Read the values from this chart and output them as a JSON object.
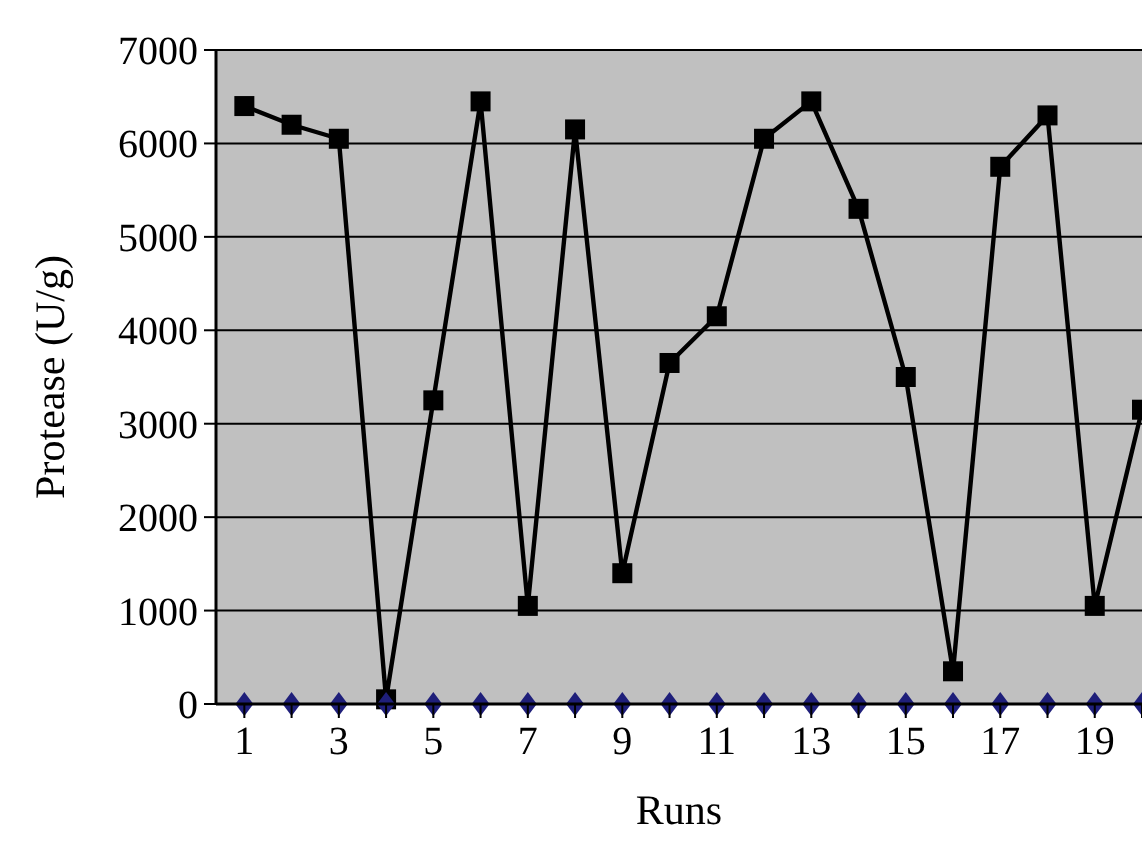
{
  "chart_data": {
    "type": "line",
    "xlabel": "Runs",
    "ylabel": "Protease (U/g)",
    "x": [
      1,
      2,
      3,
      4,
      5,
      6,
      7,
      8,
      9,
      10,
      11,
      12,
      13,
      14,
      15,
      16,
      17,
      18,
      19,
      20
    ],
    "xlim": [
      0.4,
      20
    ],
    "xticks": [
      1,
      {
        "value": 2,
        "label": null
      },
      3,
      {
        "value": 4,
        "label": null
      },
      5,
      {
        "value": 6,
        "label": null
      },
      7,
      {
        "value": 8,
        "label": null
      },
      9,
      {
        "value": 10,
        "label": null
      },
      11,
      {
        "value": 12,
        "label": null
      },
      13,
      {
        "value": 14,
        "label": null
      },
      15,
      {
        "value": 16,
        "label": null
      },
      17,
      {
        "value": 18,
        "label": null
      },
      19,
      {
        "value": 20,
        "label": null
      }
    ],
    "ylim": [
      0,
      7000
    ],
    "yticks": [
      0,
      1000,
      2000,
      3000,
      4000,
      5000,
      6000,
      7000
    ],
    "grid": "y",
    "series": [
      {
        "marker": "square",
        "color": "#000000",
        "values": [
          6400,
          6200,
          6050,
          50,
          3250,
          6450,
          1050,
          6150,
          1400,
          3650,
          4150,
          6050,
          6450,
          5300,
          3500,
          350,
          5750,
          6300,
          1050,
          3150
        ]
      },
      {
        "type": "scatter",
        "marker": "diamond",
        "color": "#1f1f7a",
        "values": [
          0,
          0,
          0,
          0,
          0,
          0,
          0,
          0,
          0,
          0,
          0,
          0,
          0,
          0,
          0,
          0,
          0,
          0,
          0,
          0
        ]
      }
    ]
  }
}
